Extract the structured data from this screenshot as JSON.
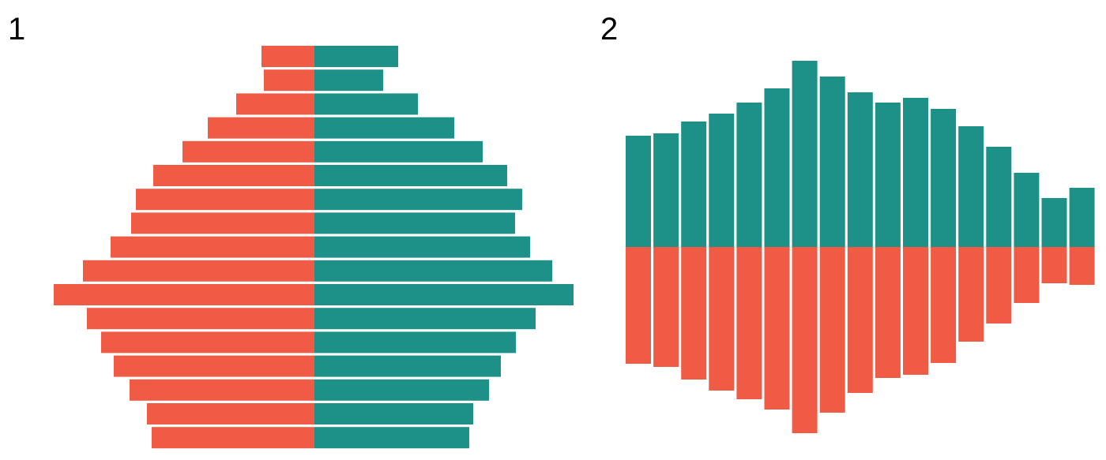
{
  "chart_data": [
    {
      "panel_label": "1",
      "type": "bar",
      "orientation": "horizontal",
      "layout": "butterfly",
      "categories_count": 17,
      "value_range": [
        0,
        330
      ],
      "series": [
        {
          "side": "left",
          "color": "#ef5b45",
          "values": [
            67,
            64,
            99,
            135,
            167,
            204,
            226,
            232,
            258,
            293,
            330,
            288,
            270,
            254,
            234,
            212,
            206
          ]
        },
        {
          "side": "right",
          "color": "#1d9188",
          "values": [
            106,
            87,
            131,
            177,
            213,
            244,
            263,
            254,
            273,
            301,
            328,
            280,
            255,
            236,
            221,
            201,
            196
          ]
        }
      ],
      "grid": false,
      "legend": "none"
    },
    {
      "panel_label": "2",
      "type": "bar",
      "orientation": "vertical",
      "layout": "diverging",
      "categories_count": 17,
      "value_range": [
        0,
        238
      ],
      "series": [
        {
          "side": "up",
          "color": "#1d9188",
          "values": [
            141,
            144,
            159,
            169,
            183,
            201,
            236,
            216,
            196,
            183,
            189,
            175,
            153,
            127,
            94,
            62,
            75
          ]
        },
        {
          "side": "down",
          "color": "#ef5b45",
          "values": [
            148,
            152,
            168,
            182,
            193,
            206,
            236,
            210,
            185,
            166,
            162,
            147,
            120,
            97,
            71,
            46,
            48
          ]
        }
      ],
      "grid": false,
      "legend": "none"
    }
  ]
}
